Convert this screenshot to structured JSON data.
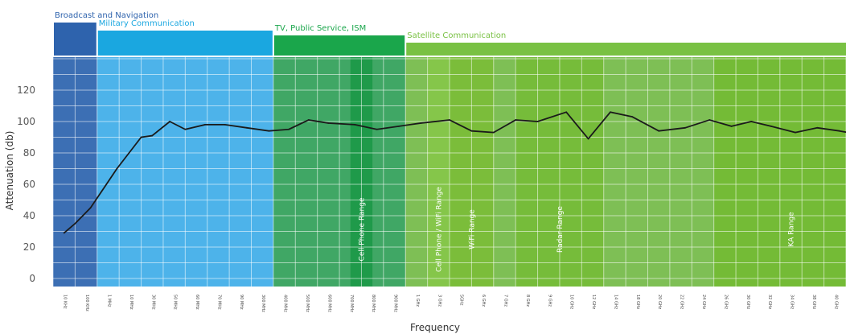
{
  "chart_data": {
    "type": "line",
    "title": "",
    "xlabel": "Frequency",
    "ylabel": "Attenuation (db)",
    "ylim": [
      0,
      140
    ],
    "yticks": [
      0,
      20,
      40,
      60,
      80,
      100,
      120
    ],
    "grid": true,
    "bands": [
      {
        "label": "Broadcast and Navigation",
        "color": "#2e63ad",
        "body_color": "#3c6fb4",
        "from": 0,
        "to": 2
      },
      {
        "label": "Military Communication",
        "color": "#1aa7e0",
        "body_color": "#4db3ea",
        "from": 2,
        "to": 10
      },
      {
        "label": "TV, Public Service, ISM",
        "color": "#1aa64b",
        "body_color": "#40a765",
        "from": 10,
        "to": 16
      },
      {
        "label": "Satellite Communication",
        "color": "#79c143",
        "body_color": "#7ebf55",
        "from": 16,
        "to": 37
      }
    ],
    "ranges": [
      {
        "label": "Cell Phone Range",
        "from": 13.5,
        "to": 14.5,
        "color": "#1f9a4a"
      },
      {
        "label": "Cell Phone / WiFi Range",
        "from": 17.0,
        "to": 18.0,
        "color": "#85c64a"
      },
      {
        "label": "WiFi Range",
        "from": 18.0,
        "to": 20.0,
        "color": "#7bbd3a"
      },
      {
        "label": "Radar Range",
        "from": 21.0,
        "to": 25.0,
        "color": "#76bc3a"
      },
      {
        "label": "KA Range",
        "from": 30.0,
        "to": 37.0,
        "color": "#74bb36"
      }
    ],
    "x_categories": [
      "10 KHz",
      "100 KHz",
      "1 MHz",
      "10 MHz",
      "30 MHz",
      "50 MHz",
      "60 MHz",
      "70 MHz",
      "90 MHz",
      "300 MHz",
      "400 MHz",
      "500 MHz",
      "600 MHz",
      "700 MHz",
      "800 MHz",
      "900 MHz",
      "1 GHz",
      "3 GHz",
      "5GHz",
      "6 GHz",
      "7 GHz",
      "8 GHz",
      "9 GHz",
      "10 GHz",
      "12 GHz",
      "14 GHz",
      "18 GHz",
      "20 GHz",
      "22 GHz",
      "24 GHz",
      "26 GHz",
      "30 GHz",
      "32 GHz",
      "34 GHz",
      "38 GHz",
      "40 GHz"
    ],
    "series": [
      {
        "x": [
          0.0,
          0.5,
          1.2,
          2.4,
          3.5,
          4.0,
          4.8,
          5.5,
          6.4,
          7.3,
          8.3,
          9.3,
          10.2,
          11.1,
          12.0,
          13.2,
          14.2,
          15.2,
          16.2,
          17.5,
          18.5,
          19.5,
          20.5,
          21.5,
          22.8,
          23.8,
          24.8,
          25.8,
          27.0,
          28.2,
          29.3,
          30.3,
          31.2,
          32.1,
          33.2,
          34.2,
          35.2,
          36.0
        ],
        "y": [
          29,
          35,
          45,
          70,
          90,
          91,
          100,
          95,
          98,
          98,
          96,
          94,
          95,
          101,
          99,
          98,
          95,
          97,
          99,
          101,
          94,
          93,
          101,
          100,
          106,
          89,
          106,
          103,
          94,
          96,
          101,
          97,
          100,
          97,
          93,
          96,
          94,
          92
        ]
      }
    ]
  }
}
